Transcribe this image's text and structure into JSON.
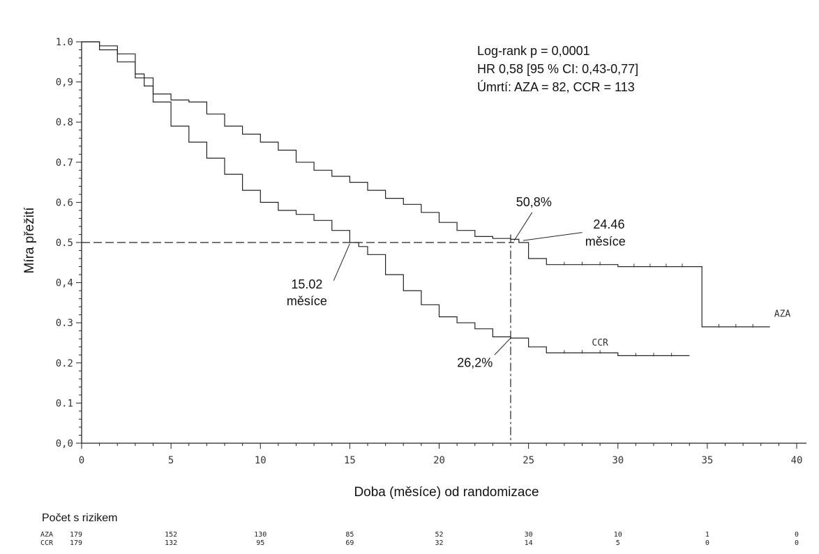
{
  "chart_data": {
    "type": "line",
    "xlabel": "Doba (měsíce) od randomizace",
    "ylabel": "Míra přežití",
    "xlim": [
      0,
      40
    ],
    "ylim": [
      0,
      1.0
    ],
    "x_ticks": [
      "0",
      "5",
      "10",
      "15",
      "20",
      "25",
      "30",
      "35",
      "40"
    ],
    "y_ticks": [
      "0,0",
      "0.1",
      "0.2",
      "0.3",
      "0,4",
      "0.5",
      "0.6",
      "0.7",
      "0.8",
      "0,9",
      "1.0"
    ],
    "grid": false,
    "stats_lines": [
      "Log-rank p = 0,0001",
      "HR 0,58 [95 % CI: 0,43-0,77]",
      "Úmrtí: AZA = 82, CCR = 113"
    ],
    "series": [
      {
        "name": "AZA",
        "points": [
          [
            0,
            1.0
          ],
          [
            1,
            0.99
          ],
          [
            2,
            0.97
          ],
          [
            3,
            0.92
          ],
          [
            3.5,
            0.89
          ],
          [
            4,
            0.87
          ],
          [
            5,
            0.855
          ],
          [
            6,
            0.85
          ],
          [
            7,
            0.82
          ],
          [
            8,
            0.79
          ],
          [
            9,
            0.77
          ],
          [
            10,
            0.75
          ],
          [
            11,
            0.73
          ],
          [
            12,
            0.7
          ],
          [
            13,
            0.68
          ],
          [
            14,
            0.665
          ],
          [
            15,
            0.65
          ],
          [
            16,
            0.63
          ],
          [
            17,
            0.61
          ],
          [
            18,
            0.595
          ],
          [
            19,
            0.575
          ],
          [
            20,
            0.55
          ],
          [
            21,
            0.53
          ],
          [
            22,
            0.515
          ],
          [
            23,
            0.51
          ],
          [
            24,
            0.508
          ],
          [
            24.46,
            0.5
          ],
          [
            25,
            0.46
          ],
          [
            26,
            0.445
          ],
          [
            30,
            0.44
          ],
          [
            34.5,
            0.44
          ],
          [
            34.7,
            0.29
          ],
          [
            38.5,
            0.29
          ]
        ]
      },
      {
        "name": "CCR",
        "points": [
          [
            0,
            1.0
          ],
          [
            1,
            0.98
          ],
          [
            2,
            0.95
          ],
          [
            3,
            0.91
          ],
          [
            4,
            0.85
          ],
          [
            5,
            0.79
          ],
          [
            6,
            0.75
          ],
          [
            7,
            0.71
          ],
          [
            8,
            0.67
          ],
          [
            9,
            0.63
          ],
          [
            10,
            0.6
          ],
          [
            11,
            0.58
          ],
          [
            12,
            0.57
          ],
          [
            13,
            0.555
          ],
          [
            14,
            0.53
          ],
          [
            15,
            0.5
          ],
          [
            15.5,
            0.49
          ],
          [
            16,
            0.47
          ],
          [
            17,
            0.42
          ],
          [
            18,
            0.38
          ],
          [
            19,
            0.345
          ],
          [
            20,
            0.315
          ],
          [
            21,
            0.3
          ],
          [
            22,
            0.285
          ],
          [
            23,
            0.265
          ],
          [
            24,
            0.262
          ],
          [
            25,
            0.24
          ],
          [
            26,
            0.225
          ],
          [
            30,
            0.218
          ],
          [
            34,
            0.218
          ]
        ]
      }
    ],
    "median_line_y": 0.5,
    "vline_x": 24,
    "annotations": [
      {
        "id": "pct-aza",
        "text": "50,8%",
        "x": 25.3,
        "y": 0.59
      },
      {
        "id": "median-aza-value",
        "text": "24.46",
        "x": 29.5,
        "y": 0.535
      },
      {
        "id": "median-aza-unit",
        "text": "měsíce",
        "x": 29.3,
        "y": 0.492
      },
      {
        "id": "median-ccr-value",
        "text": "15.02",
        "x": 12.6,
        "y": 0.385
      },
      {
        "id": "median-ccr-unit",
        "text": "měsíce",
        "x": 12.6,
        "y": 0.344
      },
      {
        "id": "pct-ccr",
        "text": "26,2%",
        "x": 22.0,
        "y": 0.19
      }
    ],
    "series_labels": [
      {
        "text": "AZA",
        "x": 39.2,
        "y": 0.315
      },
      {
        "text": "CCR",
        "x": 29.0,
        "y": 0.243
      }
    ]
  },
  "risk_table": {
    "title": "Počet s rizikem",
    "times": [
      0,
      5,
      10,
      15,
      20,
      25,
      30,
      35,
      40
    ],
    "rows": [
      {
        "label": "AZA",
        "values": [
          "179",
          "152",
          "130",
          "85",
          "52",
          "30",
          "10",
          "1",
          "0"
        ]
      },
      {
        "label": "CCR",
        "values": [
          "179",
          "132",
          "95",
          "69",
          "32",
          "14",
          "5",
          "0",
          "0"
        ]
      }
    ]
  }
}
